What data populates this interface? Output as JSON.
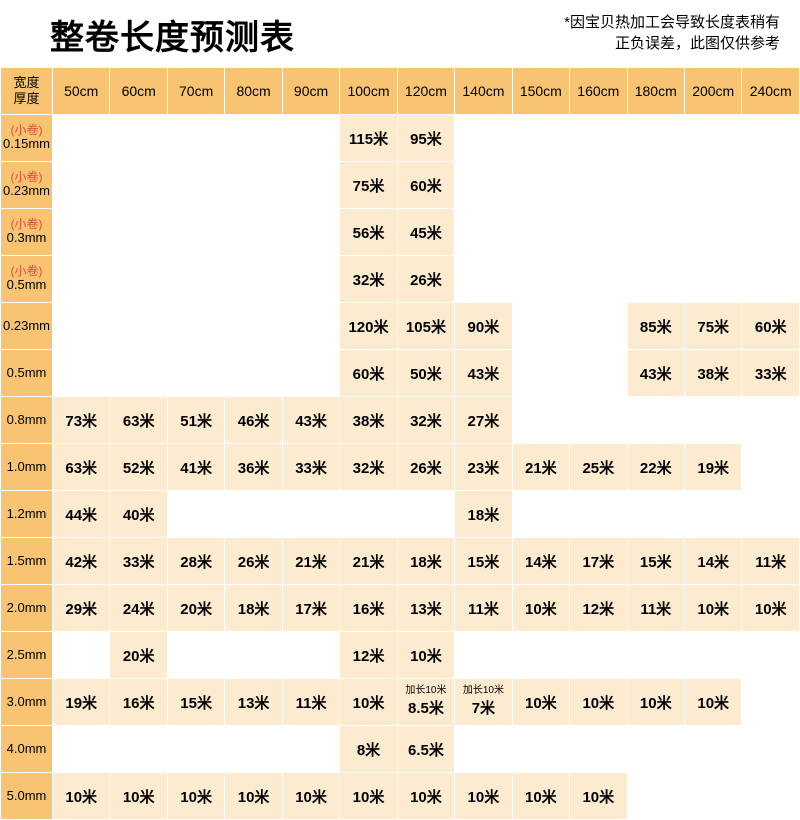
{
  "title": "整卷长度预测表",
  "note_line1": "*因宝贝热加工会导致长度表稍有",
  "note_line2": "正负误差，此图仅供参考",
  "corner_top": "宽度",
  "corner_bottom": "厚度",
  "small_roll_label": "(小卷)",
  "columns": [
    "50cm",
    "60cm",
    "70cm",
    "80cm",
    "90cm",
    "100cm",
    "120cm",
    "140cm",
    "150cm",
    "160cm",
    "180cm",
    "200cm",
    "240cm"
  ],
  "rows": [
    {
      "label": "0.15mm",
      "small": true,
      "cells": [
        "",
        "",
        "",
        "",
        "",
        "115米",
        "95米",
        "",
        "",
        "",
        "",
        "",
        ""
      ]
    },
    {
      "label": "0.23mm",
      "small": true,
      "cells": [
        "",
        "",
        "",
        "",
        "",
        "75米",
        "60米",
        "",
        "",
        "",
        "",
        "",
        ""
      ]
    },
    {
      "label": "0.3mm",
      "small": true,
      "cells": [
        "",
        "",
        "",
        "",
        "",
        "56米",
        "45米",
        "",
        "",
        "",
        "",
        "",
        ""
      ]
    },
    {
      "label": "0.5mm",
      "small": true,
      "cells": [
        "",
        "",
        "",
        "",
        "",
        "32米",
        "26米",
        "",
        "",
        "",
        "",
        "",
        ""
      ]
    },
    {
      "label": "0.23mm",
      "small": false,
      "cells": [
        "",
        "",
        "",
        "",
        "",
        "120米",
        "105米",
        "90米",
        "",
        "",
        "85米",
        "75米",
        "60米"
      ]
    },
    {
      "label": "0.5mm",
      "small": false,
      "cells": [
        "",
        "",
        "",
        "",
        "",
        "60米",
        "50米",
        "43米",
        "",
        "",
        "43米",
        "38米",
        "33米"
      ]
    },
    {
      "label": "0.8mm",
      "small": false,
      "cells": [
        "73米",
        "63米",
        "51米",
        "46米",
        "43米",
        "38米",
        "32米",
        "27米",
        "",
        "",
        "",
        "",
        ""
      ]
    },
    {
      "label": "1.0mm",
      "small": false,
      "cells": [
        "63米",
        "52米",
        "41米",
        "36米",
        "33米",
        "32米",
        "26米",
        "23米",
        "21米",
        "25米",
        "22米",
        "19米",
        ""
      ]
    },
    {
      "label": "1.2mm",
      "small": false,
      "cells": [
        "44米",
        "40米",
        "",
        "",
        "",
        "",
        "",
        "18米",
        "",
        "",
        "",
        "",
        ""
      ]
    },
    {
      "label": "1.5mm",
      "small": false,
      "cells": [
        "42米",
        "33米",
        "28米",
        "26米",
        "21米",
        "21米",
        "18米",
        "15米",
        "14米",
        "17米",
        "15米",
        "14米",
        "11米"
      ]
    },
    {
      "label": "2.0mm",
      "small": false,
      "cells": [
        "29米",
        "24米",
        "20米",
        "18米",
        "17米",
        "16米",
        "13米",
        "11米",
        "10米",
        "12米",
        "11米",
        "10米",
        "10米"
      ]
    },
    {
      "label": "2.5mm",
      "small": false,
      "cells": [
        "",
        "20米",
        "",
        "",
        "",
        "12米",
        "10米",
        "",
        "",
        "",
        "",
        "",
        ""
      ]
    },
    {
      "label": "3.0mm",
      "small": false,
      "cells": [
        "19米",
        "16米",
        "15米",
        "13米",
        "11米",
        "10米",
        {
          "sup": "加长10米",
          "val": "8.5米"
        },
        {
          "sup": "加长10米",
          "val": "7米"
        },
        "10米",
        "10米",
        "10米",
        "10米",
        ""
      ]
    },
    {
      "label": "4.0mm",
      "small": false,
      "cells": [
        "",
        "",
        "",
        "",
        "",
        "8米",
        "6.5米",
        "",
        "",
        "",
        "",
        "",
        ""
      ]
    },
    {
      "label": "5.0mm",
      "small": false,
      "cells": [
        "10米",
        "10米",
        "10米",
        "10米",
        "10米",
        "10米",
        "10米",
        "10米",
        "10米",
        "10米",
        "",
        "",
        ""
      ]
    }
  ]
}
